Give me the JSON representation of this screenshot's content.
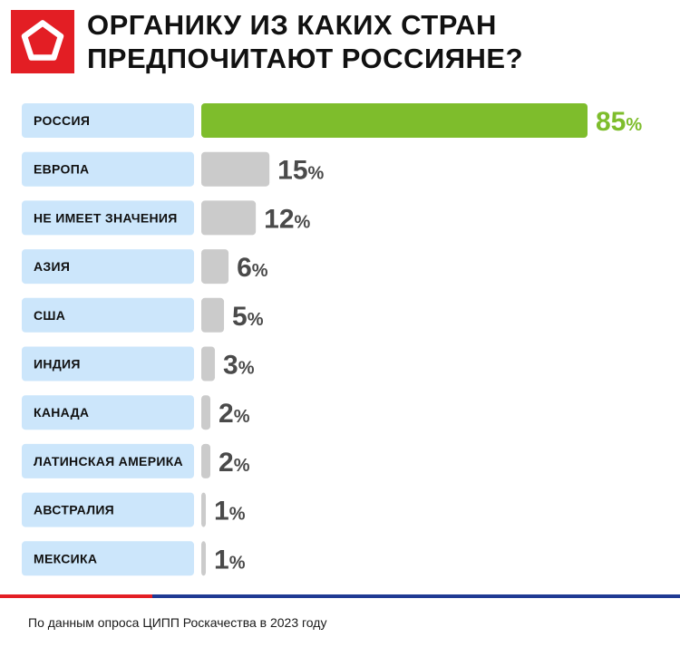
{
  "header": {
    "title_line1": "ОРГАНИКУ ИЗ КАКИХ СТРАН",
    "title_line2": "ПРЕДПОЧИТАЮТ РОССИЯНЕ?"
  },
  "logo": {
    "icon": "pentagon-logo-icon",
    "color": "#e31e24"
  },
  "colors": {
    "label_background": "#cce6fb",
    "bar_highlight": "#7ebd2c",
    "bar_default": "#cbcbcb",
    "value_highlight": "#7ebd2c",
    "value_default": "#4a4a4a",
    "stripe_red": "#e31e24",
    "stripe_blue": "#1f3a93"
  },
  "chart_data": {
    "type": "bar",
    "orientation": "horizontal",
    "categories": [
      "РОССИЯ",
      "ЕВРОПА",
      "НЕ ИМЕЕТ ЗНАЧЕНИЯ",
      "АЗИЯ",
      "США",
      "ИНДИЯ",
      "КАНАДА",
      "ЛАТИНСКАЯ АМЕРИКА",
      "АВСТРАЛИЯ",
      "МЕКСИКА"
    ],
    "values": [
      85,
      15,
      12,
      6,
      5,
      3,
      2,
      2,
      1,
      1
    ],
    "unit": "%",
    "highlight_index": 0,
    "xlim": [
      0,
      85
    ],
    "grid": false,
    "legend": "none"
  },
  "footer": {
    "source": "По данным опроса ЦИПП Роскачества в 2023 году"
  }
}
